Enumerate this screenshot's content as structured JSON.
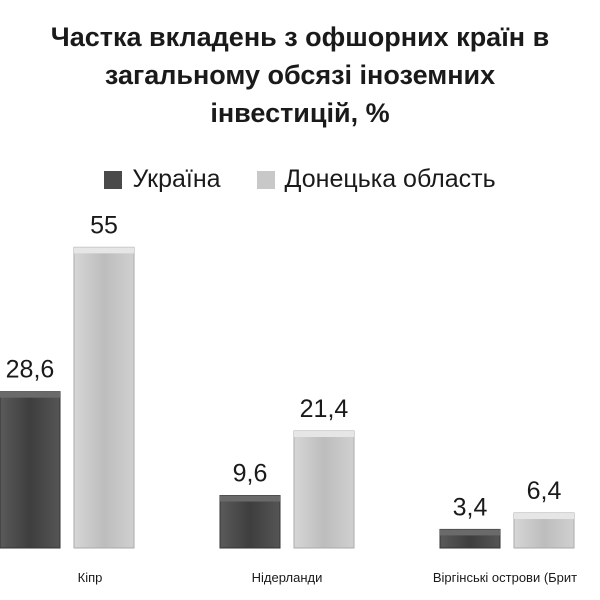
{
  "chart_data": {
    "type": "bar",
    "title": "Частка вкладень з офшорних країн в\nзагальному обсязі іноземних\nінвестицій, %",
    "categories": [
      "Кіпр",
      "Нідерланди",
      "Віргінські острови (Брит"
    ],
    "series": [
      {
        "name": "Україна",
        "values": [
          28.6,
          9.6,
          3.4
        ],
        "labels": [
          "28,6",
          "9,6",
          "3,4"
        ]
      },
      {
        "name": "Донецька область",
        "values": [
          55,
          21.4,
          6.4
        ],
        "labels": [
          "55",
          "21,4",
          "6,4"
        ]
      }
    ],
    "ylim": [
      0,
      60
    ],
    "grid": false,
    "legend_position": "top",
    "colors": [
      "#4a4a4a",
      "#c8c8c8"
    ]
  }
}
